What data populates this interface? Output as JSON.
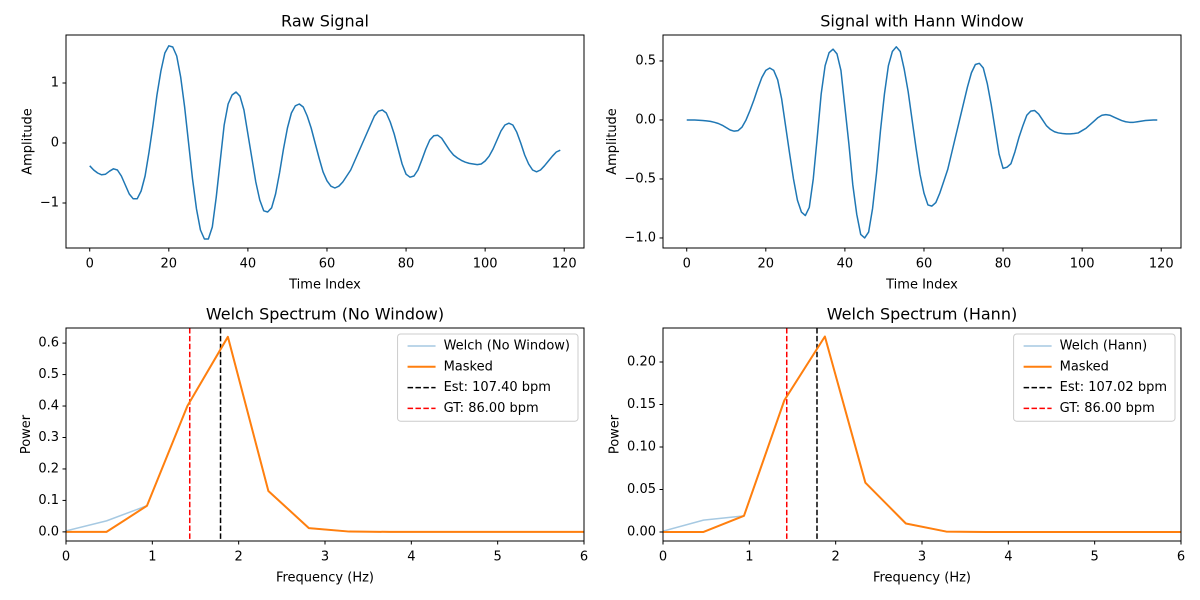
{
  "chart_data": [
    {
      "type": "line",
      "title": "Raw Signal",
      "xlabel": "Time Index",
      "ylabel": "Amplitude",
      "xlim": [
        -6,
        125
      ],
      "ylim": [
        -1.75,
        1.8
      ],
      "xticks": [
        0,
        20,
        40,
        60,
        80,
        100,
        120
      ],
      "yticks": [
        {
          "value": -1,
          "label": "−1"
        },
        0,
        1
      ],
      "x": [
        0,
        1,
        2,
        3,
        4,
        5,
        6,
        7,
        8,
        9,
        10,
        11,
        12,
        13,
        14,
        15,
        16,
        17,
        18,
        19,
        20,
        21,
        22,
        23,
        24,
        25,
        26,
        27,
        28,
        29,
        30,
        31,
        32,
        33,
        34,
        35,
        36,
        37,
        38,
        39,
        40,
        41,
        42,
        43,
        44,
        45,
        46,
        47,
        48,
        49,
        50,
        51,
        52,
        53,
        54,
        55,
        56,
        57,
        58,
        59,
        60,
        61,
        62,
        63,
        64,
        65,
        66,
        67,
        68,
        69,
        70,
        71,
        72,
        73,
        74,
        75,
        76,
        77,
        78,
        79,
        80,
        81,
        82,
        83,
        84,
        85,
        86,
        87,
        88,
        89,
        90,
        91,
        92,
        93,
        94,
        95,
        96,
        97,
        98,
        99,
        100,
        101,
        102,
        103,
        104,
        105,
        106,
        107,
        108,
        109,
        110,
        111,
        112,
        113,
        114,
        115,
        116,
        117,
        118,
        119
      ],
      "series": [
        {
          "color": "#1f77b4",
          "linewidth": 1.5,
          "values": [
            -0.38,
            -0.45,
            -0.5,
            -0.53,
            -0.52,
            -0.47,
            -0.43,
            -0.45,
            -0.55,
            -0.7,
            -0.85,
            -0.93,
            -0.93,
            -0.8,
            -0.55,
            -0.15,
            0.3,
            0.8,
            1.2,
            1.5,
            1.62,
            1.6,
            1.45,
            1.1,
            0.6,
            0,
            -0.6,
            -1.1,
            -1.45,
            -1.6,
            -1.6,
            -1.4,
            -0.9,
            -0.3,
            0.3,
            0.65,
            0.8,
            0.85,
            0.78,
            0.55,
            0.15,
            -0.25,
            -0.65,
            -0.95,
            -1.13,
            -1.15,
            -1.08,
            -0.85,
            -0.5,
            -0.1,
            0.25,
            0.5,
            0.62,
            0.65,
            0.6,
            0.45,
            0.25,
            0,
            -0.25,
            -0.48,
            -0.63,
            -0.72,
            -0.75,
            -0.72,
            -0.65,
            -0.55,
            -0.45,
            -0.3,
            -0.15,
            0,
            0.15,
            0.3,
            0.45,
            0.53,
            0.55,
            0.5,
            0.35,
            0.15,
            -0.1,
            -0.35,
            -0.52,
            -0.57,
            -0.55,
            -0.45,
            -0.28,
            -0.1,
            0.05,
            0.12,
            0.13,
            0.08,
            -0.02,
            -0.12,
            -0.2,
            -0.25,
            -0.29,
            -0.32,
            -0.34,
            -0.35,
            -0.36,
            -0.35,
            -0.3,
            -0.22,
            -0.1,
            0.05,
            0.2,
            0.3,
            0.33,
            0.3,
            0.18,
            0,
            -0.2,
            -0.35,
            -0.45,
            -0.48,
            -0.45,
            -0.38,
            -0.3,
            -0.22,
            -0.15,
            -0.12
          ]
        }
      ]
    },
    {
      "type": "line",
      "title": "Signal with Hann Window",
      "xlabel": "Time Index",
      "ylabel": "Amplitude",
      "xlim": [
        -6,
        125
      ],
      "ylim": [
        -1.085,
        0.72
      ],
      "xticks": [
        0,
        20,
        40,
        60,
        80,
        100,
        120
      ],
      "yticks": [
        {
          "value": -1,
          "label": "−1.0"
        },
        {
          "value": -0.5,
          "label": "−0.5"
        },
        {
          "value": 0,
          "label": "0.0"
        },
        0.5
      ],
      "x": [
        0,
        1,
        2,
        3,
        4,
        5,
        6,
        7,
        8,
        9,
        10,
        11,
        12,
        13,
        14,
        15,
        16,
        17,
        18,
        19,
        20,
        21,
        22,
        23,
        24,
        25,
        26,
        27,
        28,
        29,
        30,
        31,
        32,
        33,
        34,
        35,
        36,
        37,
        38,
        39,
        40,
        41,
        42,
        43,
        44,
        45,
        46,
        47,
        48,
        49,
        50,
        51,
        52,
        53,
        54,
        55,
        56,
        57,
        58,
        59,
        60,
        61,
        62,
        63,
        64,
        65,
        66,
        67,
        68,
        69,
        70,
        71,
        72,
        73,
        74,
        75,
        76,
        77,
        78,
        79,
        80,
        81,
        82,
        83,
        84,
        85,
        86,
        87,
        88,
        89,
        90,
        91,
        92,
        93,
        94,
        95,
        96,
        97,
        98,
        99,
        100,
        101,
        102,
        103,
        104,
        105,
        106,
        107,
        108,
        109,
        110,
        111,
        112,
        113,
        114,
        115,
        116,
        117,
        118,
        119
      ],
      "series": [
        {
          "color": "#1f77b4",
          "linewidth": 1.5,
          "values": [
            0,
            0,
            0,
            -0.002,
            -0.005,
            -0.008,
            -0.012,
            -0.02,
            -0.03,
            -0.045,
            -0.065,
            -0.085,
            -0.095,
            -0.09,
            -0.06,
            0,
            0.08,
            0.17,
            0.27,
            0.36,
            0.42,
            0.44,
            0.42,
            0.34,
            0.18,
            -0.05,
            -0.28,
            -0.5,
            -0.68,
            -0.78,
            -0.81,
            -0.74,
            -0.5,
            -0.15,
            0.22,
            0.46,
            0.57,
            0.6,
            0.56,
            0.42,
            0.11,
            -0.2,
            -0.55,
            -0.8,
            -0.97,
            -1.0,
            -0.95,
            -0.75,
            -0.45,
            -0.09,
            0.22,
            0.46,
            0.58,
            0.62,
            0.58,
            0.43,
            0.24,
            0,
            -0.24,
            -0.46,
            -0.62,
            -0.72,
            -0.73,
            -0.7,
            -0.62,
            -0.52,
            -0.42,
            -0.28,
            -0.14,
            0,
            0.14,
            0.28,
            0.4,
            0.47,
            0.48,
            0.44,
            0.31,
            0.13,
            -0.08,
            -0.29,
            -0.41,
            -0.4,
            -0.37,
            -0.27,
            -0.15,
            -0.05,
            0.04,
            0.075,
            0.08,
            0.05,
            0,
            -0.05,
            -0.08,
            -0.1,
            -0.11,
            -0.115,
            -0.118,
            -0.118,
            -0.115,
            -0.11,
            -0.09,
            -0.07,
            -0.04,
            -0.01,
            0.02,
            0.04,
            0.045,
            0.04,
            0.025,
            0.01,
            -0.005,
            -0.015,
            -0.02,
            -0.02,
            -0.015,
            -0.01,
            -0.005,
            -0.002,
            0,
            0
          ]
        }
      ]
    },
    {
      "type": "line",
      "title": "Welch Spectrum (No Window)",
      "xlabel": "Frequency (Hz)",
      "ylabel": "Power",
      "xlim": [
        0,
        6
      ],
      "ylim": [
        -0.029,
        0.648
      ],
      "xticks": [
        0,
        1,
        2,
        3,
        4,
        5,
        6
      ],
      "yticks": [
        {
          "value": 0,
          "label": "0.0"
        },
        0.1,
        0.2,
        0.3,
        0.4,
        0.5,
        0.6
      ],
      "legend": "upper right",
      "x": [
        0,
        0.469,
        0.938,
        1.406,
        1.875,
        2.344,
        2.813,
        3.281,
        3.75,
        4.219,
        4.688,
        5.156,
        5.625,
        6.094
      ],
      "series": [
        {
          "name": "Welch (No Window)",
          "color": "#a6c9e2",
          "linewidth": 1.5,
          "values": [
            0.003,
            0.035,
            0.083,
            0.4,
            0.62,
            0.13,
            0.012,
            0.001,
            0,
            0,
            0,
            0,
            0,
            0
          ]
        },
        {
          "name": "Masked",
          "color": "#ff7f0e",
          "linewidth": 2,
          "values": [
            0,
            0,
            0.083,
            0.4,
            0.62,
            0.13,
            0.012,
            0.001,
            0,
            0,
            0,
            0,
            0,
            0
          ]
        }
      ],
      "vlines": [
        {
          "name": "Est: 107.40 bpm",
          "x": 1.79,
          "color": "#000000"
        },
        {
          "name": "GT: 86.00 bpm",
          "x": 1.4333,
          "color": "#ff0000"
        }
      ]
    },
    {
      "type": "line",
      "title": "Welch Spectrum (Hann)",
      "xlabel": "Frequency (Hz)",
      "ylabel": "Power",
      "xlim": [
        0,
        6
      ],
      "ylim": [
        -0.0106,
        0.24
      ],
      "xticks": [
        0,
        1,
        2,
        3,
        4,
        5,
        6
      ],
      "yticks": [
        {
          "value": 0,
          "label": "0.00"
        },
        0.05,
        {
          "value": 0.1,
          "label": "0.10"
        },
        0.15,
        {
          "value": 0.2,
          "label": "0.20"
        }
      ],
      "legend": "upper right",
      "x": [
        0,
        0.469,
        0.938,
        1.406,
        1.875,
        2.344,
        2.813,
        3.281,
        3.75,
        4.219,
        4.688,
        5.156,
        5.625,
        6.094
      ],
      "series": [
        {
          "name": "Welch (Hann)",
          "color": "#a6c9e2",
          "linewidth": 1.5,
          "values": [
            0.001,
            0.014,
            0.019,
            0.155,
            0.23,
            0.058,
            0.01,
            0.0005,
            0,
            0,
            0,
            0,
            0,
            0
          ]
        },
        {
          "name": "Masked",
          "color": "#ff7f0e",
          "linewidth": 2,
          "values": [
            0,
            0,
            0.019,
            0.155,
            0.23,
            0.058,
            0.01,
            0.0005,
            0,
            0,
            0,
            0,
            0,
            0
          ]
        }
      ],
      "vlines": [
        {
          "name": "Est: 107.02 bpm",
          "x": 1.7837,
          "color": "#000000"
        },
        {
          "name": "GT: 86.00 bpm",
          "x": 1.4333,
          "color": "#ff0000"
        }
      ]
    }
  ]
}
